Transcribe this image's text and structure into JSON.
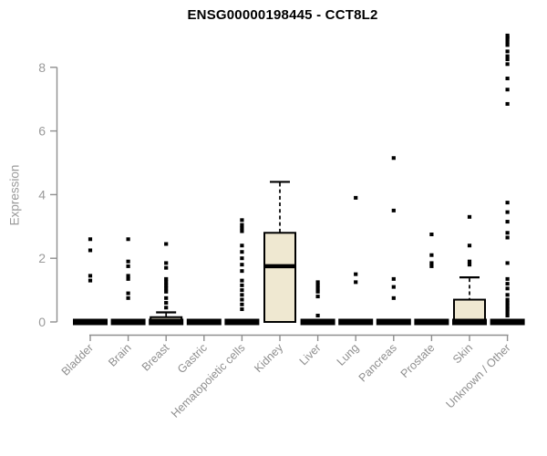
{
  "figure": {
    "background": "#ffffff"
  },
  "chart_data": {
    "type": "boxplot",
    "title": "ENSG00000198445 - CCT8L2",
    "ylabel": "Expression",
    "xlabel": "",
    "ylim": [
      0,
      8
    ],
    "yticks": [
      0,
      2,
      4,
      6,
      8
    ],
    "grid": false,
    "legend": "none",
    "colors": {
      "box_fill": "#efe8d1",
      "box_stroke": "#000000",
      "median": "#000000",
      "outlier": "#000000",
      "axis": "#8f8f8f",
      "y_tick_label": "#9a9a9a",
      "x_tick_label": "#8f8f8f",
      "title": "#000000"
    },
    "categories": [
      "Bladder",
      "Brain",
      "Breast",
      "Gastric",
      "Hematopoietic cells",
      "Kidney",
      "Liver",
      "Lung",
      "Pancreas",
      "Prostate",
      "Skin",
      "Unknown / Other"
    ],
    "series": [
      {
        "name": "Bladder",
        "q1": 0,
        "median": 0,
        "q3": 0,
        "whisker_low": 0,
        "whisker_high": 0,
        "outliers": [
          1.3,
          1.45,
          2.25,
          2.6
        ]
      },
      {
        "name": "Brain",
        "q1": 0,
        "median": 0,
        "q3": 0,
        "whisker_low": 0,
        "whisker_high": 0,
        "outliers": [
          0.75,
          0.9,
          1.35,
          1.45,
          1.75,
          1.9,
          2.6
        ]
      },
      {
        "name": "Breast",
        "q1": 0,
        "median": 0,
        "q3": 0.15,
        "whisker_low": 0,
        "whisker_high": 0.3,
        "outliers": [
          0.45,
          0.6,
          0.75,
          0.95,
          1.05,
          1.15,
          1.25,
          1.35,
          1.7,
          1.85,
          2.45
        ]
      },
      {
        "name": "Gastric",
        "q1": 0,
        "median": 0,
        "q3": 0,
        "whisker_low": 0,
        "whisker_high": 0,
        "outliers": []
      },
      {
        "name": "Hematopoietic cells",
        "q1": 0,
        "median": 0,
        "q3": 0,
        "whisker_low": 0,
        "whisker_high": 0,
        "outliers": [
          0.4,
          0.55,
          0.7,
          0.85,
          1.0,
          1.15,
          1.3,
          1.6,
          1.8,
          2.0,
          2.2,
          2.4,
          2.85,
          2.95,
          3.05,
          3.2
        ]
      },
      {
        "name": "Kidney",
        "q1": 0,
        "median": 1.75,
        "q3": 2.8,
        "whisker_low": 0,
        "whisker_high": 4.4,
        "outliers": []
      },
      {
        "name": "Liver",
        "q1": 0,
        "median": 0,
        "q3": 0,
        "whisker_low": 0,
        "whisker_high": 0,
        "outliers": [
          0.2,
          0.8,
          0.95,
          1.05,
          1.15,
          1.25
        ]
      },
      {
        "name": "Lung",
        "q1": 0,
        "median": 0,
        "q3": 0,
        "whisker_low": 0,
        "whisker_high": 0,
        "outliers": [
          1.25,
          1.5,
          3.9
        ]
      },
      {
        "name": "Pancreas",
        "q1": 0,
        "median": 0,
        "q3": 0,
        "whisker_low": 0,
        "whisker_high": 0,
        "outliers": [
          0.75,
          1.1,
          1.35,
          3.5,
          5.15
        ]
      },
      {
        "name": "Prostate",
        "q1": 0,
        "median": 0,
        "q3": 0,
        "whisker_low": 0,
        "whisker_high": 0,
        "outliers": [
          1.75,
          1.85,
          2.1,
          2.75
        ]
      },
      {
        "name": "Skin",
        "q1": 0,
        "median": 0,
        "q3": 0.7,
        "whisker_low": 0,
        "whisker_high": 1.4,
        "outliers": [
          1.8,
          1.9,
          2.4,
          3.3
        ]
      },
      {
        "name": "Unknown / Other",
        "q1": 0,
        "median": 0,
        "q3": 0,
        "whisker_low": 0,
        "whisker_high": 0,
        "outliers": [
          0.2,
          0.3,
          0.4,
          0.5,
          0.6,
          0.7,
          0.85,
          1.05,
          1.2,
          1.35,
          1.85,
          2.65,
          2.8,
          3.15,
          3.45,
          3.75,
          6.85,
          7.3,
          7.65,
          8.1,
          8.25,
          8.35,
          8.5,
          8.7,
          8.8,
          8.9,
          8.95,
          9.0
        ]
      }
    ]
  }
}
